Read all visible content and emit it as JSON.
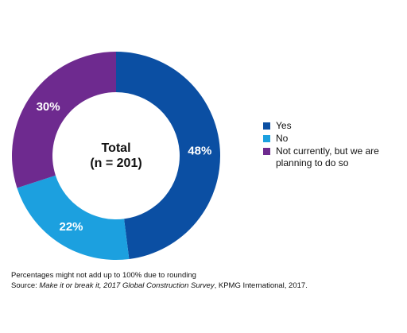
{
  "chart_data": {
    "type": "pie",
    "center_label": {
      "line1": "Total",
      "line2": "(n = 201)"
    },
    "slices": [
      {
        "label": "Yes",
        "value": 48,
        "display": "48%",
        "color": "#0b4fa3"
      },
      {
        "label": "No",
        "value": 22,
        "display": "22%",
        "color": "#1ca0df"
      },
      {
        "label": "Not currently, but we are planning to do so",
        "value": 30,
        "display": "30%",
        "color": "#6e2a8f"
      }
    ],
    "legend_placement": "right",
    "legend": [
      {
        "label": "Yes",
        "color": "#0b4fa3"
      },
      {
        "label": "No",
        "color": "#1ca0df"
      },
      {
        "label": "Not currently, but we are planning to do so",
        "color": "#6e2a8f"
      }
    ]
  },
  "footer": {
    "note": "Percentages might not add up to 100% due to rounding",
    "source_prefix": "Source: ",
    "source_title": "Make it or break it, 2017 Global Construction Survey",
    "source_suffix": ", KPMG International, 2017."
  }
}
